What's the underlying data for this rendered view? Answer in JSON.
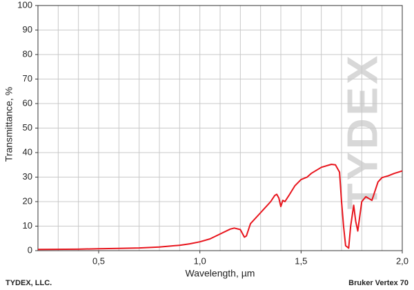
{
  "chart_data": {
    "type": "line",
    "y_label": "Transmittance, %",
    "x_label": "Wavelength, µm",
    "footer_left": "TYDEX, LLC.",
    "footer_right": "Bruker Vertex 70",
    "watermark": "TYDEX",
    "xlim": [
      0.2,
      2.0
    ],
    "xticks": [
      {
        "value": 0.5,
        "label": "0,5"
      },
      {
        "value": 1.0,
        "label": "1,0"
      },
      {
        "value": 1.5,
        "label": "1,5"
      },
      {
        "value": 2.0,
        "label": "2,0"
      }
    ],
    "xminor": [
      0.2,
      0.3,
      0.4,
      0.5,
      0.6,
      0.7,
      0.8,
      0.9,
      1.0,
      1.1,
      1.2,
      1.3,
      1.4,
      1.5,
      1.6,
      1.7,
      1.8,
      1.9,
      2.0
    ],
    "ylim": [
      0,
      100
    ],
    "yticks": [
      0,
      10,
      20,
      30,
      40,
      50,
      60,
      70,
      80,
      90,
      100
    ],
    "grid": true,
    "series": [
      {
        "name": "Transmittance",
        "color": "#e8141c",
        "x": [
          0.2,
          0.4,
          0.5,
          0.6,
          0.7,
          0.8,
          0.9,
          0.95,
          1.0,
          1.05,
          1.1,
          1.15,
          1.17,
          1.2,
          1.22,
          1.23,
          1.25,
          1.3,
          1.35,
          1.37,
          1.38,
          1.39,
          1.4,
          1.41,
          1.42,
          1.44,
          1.47,
          1.5,
          1.53,
          1.55,
          1.6,
          1.65,
          1.67,
          1.69,
          1.7,
          1.71,
          1.72,
          1.735,
          1.745,
          1.76,
          1.77,
          1.78,
          1.8,
          1.82,
          1.85,
          1.88,
          1.9,
          1.93,
          1.96,
          2.0
        ],
        "values": [
          0.5,
          0.6,
          0.8,
          0.9,
          1.1,
          1.5,
          2.2,
          2.8,
          3.6,
          4.8,
          6.8,
          8.8,
          9.2,
          8.6,
          5.5,
          6,
          11,
          15.5,
          20,
          22.5,
          23,
          21.5,
          18,
          20.5,
          20,
          22.5,
          26.5,
          29,
          30,
          31.5,
          34,
          35.2,
          35,
          32,
          20,
          10,
          2,
          1,
          10,
          18.5,
          12,
          8,
          20,
          22,
          20.5,
          28,
          29.8,
          30.5,
          31.5,
          32.5
        ]
      }
    ]
  }
}
